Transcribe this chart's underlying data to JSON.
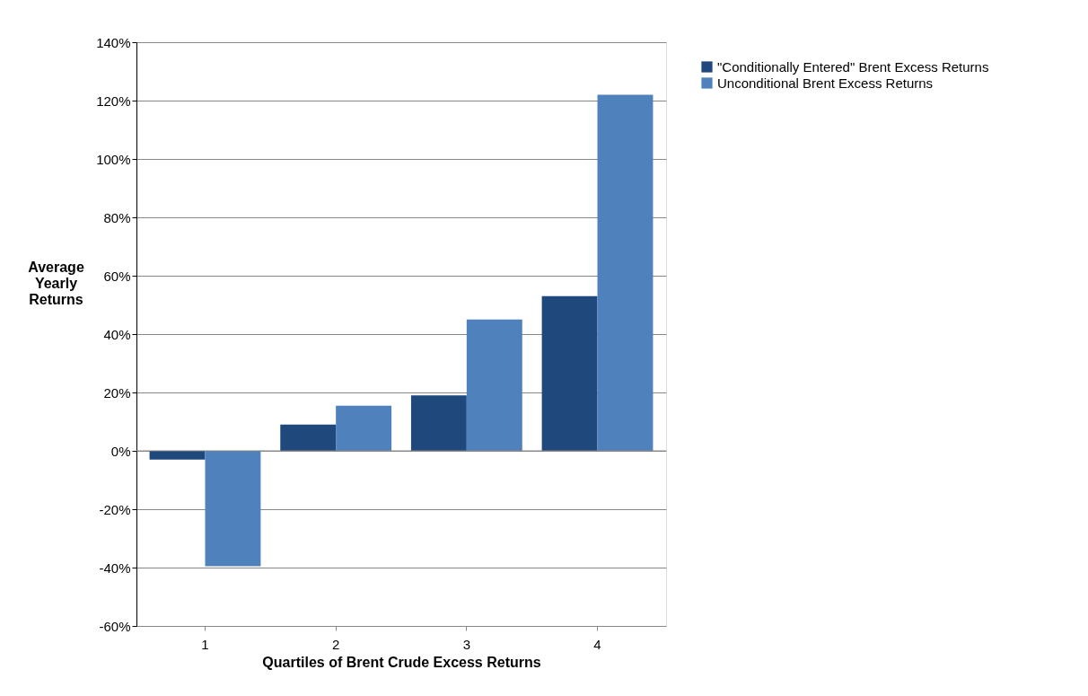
{
  "chart_data": {
    "type": "bar",
    "xlabel": "Quartiles of Brent Crude Excess Returns",
    "ylabel": "Average Yearly Returns",
    "categories": [
      "1",
      "2",
      "3",
      "4"
    ],
    "series": [
      {
        "name": "\"Conditionally Entered\" Brent Excess Returns",
        "color": "#1f497d",
        "values": [
          -3,
          9,
          19,
          53
        ]
      },
      {
        "name": "Unconditional Brent Excess Returns",
        "color": "#4f81bd",
        "values": [
          -39.5,
          15.5,
          45,
          122
        ]
      }
    ],
    "ylim": [
      -60,
      140
    ],
    "yticks": [
      {
        "value": -60,
        "label": "-60%"
      },
      {
        "value": -40,
        "label": "-40%"
      },
      {
        "value": -20,
        "label": "-20%"
      },
      {
        "value": 0,
        "label": "0%"
      },
      {
        "value": 20,
        "label": "20%"
      },
      {
        "value": 40,
        "label": "40%"
      },
      {
        "value": 60,
        "label": "60%"
      },
      {
        "value": 80,
        "label": "80%"
      },
      {
        "value": 100,
        "label": "100%"
      },
      {
        "value": 120,
        "label": "120%"
      },
      {
        "value": 140,
        "label": "140%"
      }
    ],
    "grid": "y",
    "legend": "right"
  }
}
